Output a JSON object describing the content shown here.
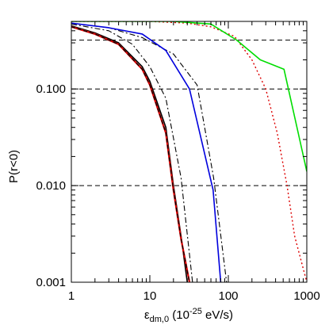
{
  "chart_data": {
    "type": "line",
    "xlabel": {
      "symbol": "ε",
      "subscript": "dm,0",
      "prefix": " (10",
      "exponent": "-25",
      "suffix": " eV/s)"
    },
    "ylabel": "P(r<0)",
    "x_scale": "log",
    "y_scale": "log",
    "xlim": [
      1,
      1000
    ],
    "ylim": [
      0.001,
      0.5
    ],
    "x_ticks": [
      {
        "value": 1,
        "label": "1"
      },
      {
        "value": 10,
        "label": "10"
      },
      {
        "value": 100,
        "label": "100"
      },
      {
        "value": 1000,
        "label": "1000"
      }
    ],
    "y_ticks": [
      {
        "value": 0.001,
        "label": "0.001"
      },
      {
        "value": 0.01,
        "label": "0.010"
      },
      {
        "value": 0.1,
        "label": "0.100"
      }
    ],
    "reference_lines": [
      0.32,
      0.1,
      0.01
    ],
    "series": [
      {
        "color": "#000000",
        "dash": "solid",
        "width": 1.6,
        "points": [
          [
            1,
            0.45
          ],
          [
            2,
            0.38
          ],
          [
            4,
            0.3
          ],
          [
            8,
            0.17
          ],
          [
            10,
            0.12
          ],
          [
            16,
            0.04
          ],
          [
            20,
            0.01
          ],
          [
            25,
            0.003
          ],
          [
            30,
            0.001
          ]
        ]
      },
      {
        "color": "#dd0000",
        "dash": "solid",
        "width": 2.2,
        "points": [
          [
            1,
            0.44
          ],
          [
            2,
            0.37
          ],
          [
            4,
            0.29
          ],
          [
            8,
            0.16
          ],
          [
            10,
            0.11
          ],
          [
            16,
            0.035
          ],
          [
            20,
            0.009
          ],
          [
            25,
            0.0028
          ],
          [
            32,
            0.001
          ]
        ]
      },
      {
        "color": "#000000",
        "dash": "dash",
        "width": 1.2,
        "points": [
          [
            1,
            0.44
          ],
          [
            2,
            0.37
          ],
          [
            4,
            0.29
          ],
          [
            8,
            0.16
          ],
          [
            10,
            0.11
          ],
          [
            16,
            0.035
          ],
          [
            20,
            0.009
          ],
          [
            25,
            0.0028
          ],
          [
            32,
            0.001
          ]
        ]
      },
      {
        "color": "#000000",
        "dash": "dashdot",
        "width": 1.1,
        "points": [
          [
            1,
            0.47
          ],
          [
            3,
            0.4
          ],
          [
            6,
            0.29
          ],
          [
            10,
            0.17
          ],
          [
            16,
            0.08
          ],
          [
            25,
            0.012
          ],
          [
            35,
            0.001
          ]
        ]
      },
      {
        "color": "#000000",
        "dash": "dashdot",
        "width": 1.1,
        "points": [
          [
            1,
            0.48
          ],
          [
            3,
            0.43
          ],
          [
            8,
            0.34
          ],
          [
            20,
            0.23
          ],
          [
            40,
            0.11
          ],
          [
            65,
            0.012
          ],
          [
            95,
            0.001
          ]
        ]
      },
      {
        "color": "#0000dd",
        "dash": "solid",
        "width": 1.6,
        "points": [
          [
            1,
            0.48
          ],
          [
            3,
            0.43
          ],
          [
            8,
            0.37
          ],
          [
            16,
            0.25
          ],
          [
            32,
            0.1
          ],
          [
            64,
            0.009
          ],
          [
            80,
            0.001
          ]
        ]
      },
      {
        "color": "#dd0000",
        "dash": "dot",
        "width": 1.4,
        "points": [
          [
            1,
            0.5
          ],
          [
            10,
            0.5
          ],
          [
            30,
            0.48
          ],
          [
            60,
            0.44
          ],
          [
            120,
            0.35
          ],
          [
            200,
            0.2
          ],
          [
            300,
            0.1
          ],
          [
            420,
            0.035
          ],
          [
            560,
            0.01
          ],
          [
            700,
            0.003
          ],
          [
            1000,
            0.001
          ]
        ]
      },
      {
        "color": "#00dd00",
        "dash": "solid",
        "width": 1.6,
        "points": [
          [
            1,
            0.5
          ],
          [
            20,
            0.5
          ],
          [
            60,
            0.47
          ],
          [
            128,
            0.32
          ],
          [
            256,
            0.2
          ],
          [
            512,
            0.16
          ],
          [
            1000,
            0.014
          ]
        ]
      }
    ]
  }
}
